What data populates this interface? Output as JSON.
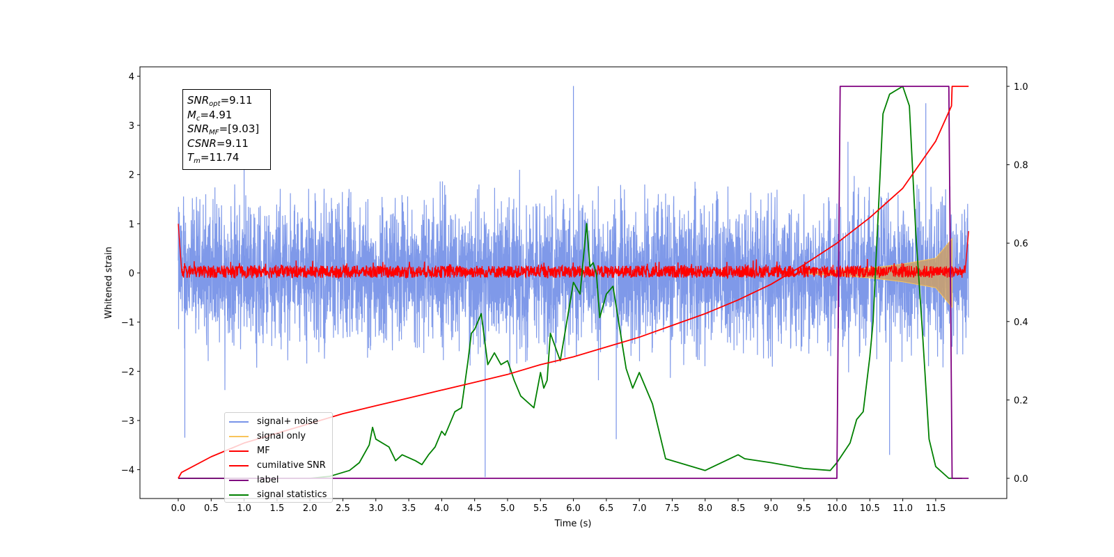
{
  "chart_data": {
    "type": "line",
    "xlabel": "Time (s)",
    "ylabel": "Whitened strain",
    "xlim": [
      -0.6,
      12.4
    ],
    "ylim_left": [
      -4.55,
      4.15
    ],
    "ylim_right": [
      -0.05,
      1.05
    ],
    "x_ticks": [
      "0.0",
      "0.5",
      "1.0",
      "1.5",
      "2.0",
      "2.5",
      "3.0",
      "3.5",
      "4.0",
      "4.5",
      "5.0",
      "5.5",
      "6.0",
      "6.5",
      "7.0",
      "7.5",
      "8.0",
      "8.5",
      "9.0",
      "9.5",
      "10.0",
      "10.5",
      "11.0",
      "11.5"
    ],
    "y_ticks_left": [
      "4",
      "3",
      "2",
      "1",
      "0",
      "−1",
      "−2",
      "−3",
      "−4"
    ],
    "y_ticks_right": [
      "1.0",
      "0.8",
      "0.6",
      "0.4",
      "0.2",
      "0.0"
    ],
    "legend_placement": "lower left",
    "grid": false,
    "annotation": {
      "snr_opt": "=9.11",
      "mc": "=4.91",
      "snr_mf": "=[9.03]",
      "csnr": "=9.11",
      "tm": "=11.74"
    },
    "series": [
      {
        "name": "signal+ noise",
        "color": "#7893e8",
        "axis": "left",
        "envelope": {
          "x": [
            0,
            12
          ],
          "upper_typical": 2.0,
          "lower_typical": -2.0,
          "max": 3.8,
          "min": -4.15
        }
      },
      {
        "name": "signal only",
        "color": "#f8c45a",
        "axis": "left",
        "envelope": {
          "x": [
            9.5,
            10.0,
            10.5,
            11.0,
            11.5,
            11.75
          ],
          "amplitude": [
            0.02,
            0.05,
            0.1,
            0.18,
            0.3,
            0.7
          ]
        }
      },
      {
        "name": "MF",
        "color": "#ff0000",
        "axis": "left",
        "envelope": {
          "x": [
            0,
            12
          ],
          "band": [
            -0.1,
            0.15
          ],
          "start_value": 1.0,
          "end_value": 0.85
        }
      },
      {
        "name": "cumilative SNR",
        "color": "#ff0000",
        "axis": "right",
        "x": [
          0.0,
          0.05,
          0.5,
          1.0,
          1.5,
          2.0,
          2.5,
          3.0,
          3.5,
          4.0,
          4.5,
          5.0,
          5.5,
          6.0,
          6.5,
          7.0,
          7.5,
          8.0,
          8.5,
          9.0,
          9.5,
          10.0,
          10.5,
          11.0,
          11.5,
          11.74,
          11.75,
          12.0
        ],
        "y": [
          0.0,
          0.015,
          0.055,
          0.09,
          0.115,
          0.14,
          0.165,
          0.185,
          0.205,
          0.225,
          0.245,
          0.265,
          0.29,
          0.31,
          0.335,
          0.36,
          0.39,
          0.42,
          0.455,
          0.495,
          0.545,
          0.6,
          0.665,
          0.74,
          0.86,
          0.95,
          1.0,
          1.0
        ]
      },
      {
        "name": "label",
        "color": "#800080",
        "axis": "right",
        "x": [
          0.0,
          10.0,
          10.05,
          11.7,
          11.75,
          12.0
        ],
        "y": [
          0.0,
          0.0,
          1.0,
          1.0,
          0.0,
          0.0
        ]
      },
      {
        "name": "signal statistics",
        "color": "#008000",
        "axis": "right",
        "x": [
          0.0,
          1.0,
          2.0,
          2.3,
          2.6,
          2.75,
          2.9,
          2.95,
          3.0,
          3.2,
          3.3,
          3.4,
          3.6,
          3.7,
          3.8,
          3.9,
          4.0,
          4.05,
          4.1,
          4.2,
          4.3,
          4.4,
          4.45,
          4.5,
          4.6,
          4.7,
          4.8,
          4.9,
          5.0,
          5.1,
          5.2,
          5.4,
          5.5,
          5.55,
          5.6,
          5.65,
          5.8,
          6.0,
          6.1,
          6.2,
          6.25,
          6.3,
          6.35,
          6.4,
          6.5,
          6.6,
          6.8,
          6.9,
          7.0,
          7.2,
          7.4,
          7.6,
          8.0,
          8.5,
          8.6,
          9.0,
          9.5,
          9.9,
          10.0,
          10.2,
          10.3,
          10.4,
          10.5,
          10.55,
          10.7,
          10.8,
          10.9,
          11.0,
          11.1,
          11.2,
          11.3,
          11.4,
          11.5,
          11.7,
          11.8,
          11.9
        ],
        "y": [
          0.0,
          0.0,
          0.0,
          0.005,
          0.02,
          0.04,
          0.085,
          0.13,
          0.1,
          0.08,
          0.045,
          0.06,
          0.045,
          0.035,
          0.06,
          0.08,
          0.12,
          0.11,
          0.13,
          0.17,
          0.18,
          0.3,
          0.37,
          0.38,
          0.42,
          0.29,
          0.32,
          0.29,
          0.3,
          0.25,
          0.21,
          0.18,
          0.27,
          0.23,
          0.25,
          0.37,
          0.3,
          0.5,
          0.47,
          0.65,
          0.54,
          0.55,
          0.52,
          0.41,
          0.47,
          0.49,
          0.28,
          0.23,
          0.27,
          0.19,
          0.05,
          0.04,
          0.02,
          0.06,
          0.05,
          0.04,
          0.025,
          0.02,
          0.04,
          0.09,
          0.15,
          0.17,
          0.31,
          0.4,
          0.93,
          0.98,
          0.99,
          1.0,
          0.95,
          0.62,
          0.37,
          0.1,
          0.03,
          0.0,
          0.0,
          0.0
        ]
      }
    ]
  }
}
